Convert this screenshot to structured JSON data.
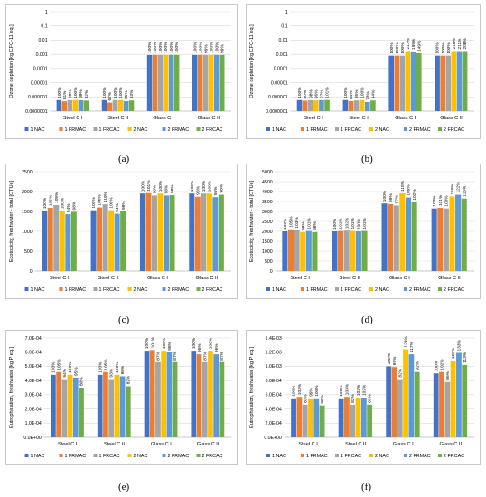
{
  "colors": {
    "series": [
      "#4472C4",
      "#ED7D31",
      "#A5A5A5",
      "#FFC000",
      "#5B9BD5",
      "#70AD47"
    ],
    "grid": "#d9d9d9",
    "axis": "#bfbfbf"
  },
  "chart_data": [
    {
      "type": "bar",
      "panel_label": "(a)",
      "ylabel": "Ozone depletion [kg CFC-11 eq.]",
      "yscale": "log",
      "ylim": [
        1e-07,
        1
      ],
      "yticks": [
        "1",
        "0.1",
        "0.01",
        "0.001",
        "0.0001",
        "0.00001",
        "0.000001",
        "0.0000001"
      ],
      "categories": [
        "Steel C I",
        "Steel C II",
        "Glass C I",
        "Glass C II"
      ],
      "series": [
        {
          "name": "1 NAC",
          "values": [
            6e-07,
            6e-07,
            0.0009,
            0.0009
          ],
          "labels": [
            "100%",
            "100%",
            "100%",
            "100%"
          ]
        },
        {
          "name": "1 FRMAC",
          "values": [
            4.9e-07,
            4e-07,
            0.0009,
            0.0009
          ],
          "labels": [
            "81%",
            "67%",
            "100%",
            "100%"
          ]
        },
        {
          "name": "1 FRCAC",
          "values": [
            5.9e-07,
            6e-07,
            0.0009,
            0.0009
          ],
          "labels": [
            "98%",
            "100%",
            "100%",
            "99%"
          ]
        },
        {
          "name": "2 NAC",
          "values": [
            6e-07,
            6e-07,
            0.0009,
            0.0009
          ],
          "labels": [
            "100%",
            "100%",
            "100%",
            "100%"
          ]
        },
        {
          "name": "2 FRMAC",
          "values": [
            5.9e-07,
            5.1e-07,
            0.0009,
            0.0009
          ],
          "labels": [
            "99%",
            "85%",
            "100%",
            "100%"
          ]
        },
        {
          "name": "2 FRCAC",
          "values": [
            5.5e-07,
            5.6e-07,
            0.0009,
            0.0009
          ],
          "labels": [
            "92%",
            "93%",
            "100%",
            "99%"
          ]
        }
      ]
    },
    {
      "type": "bar",
      "panel_label": "(b)",
      "ylabel": "Ozone depletion [kg CFC-11 eq.]",
      "yscale": "log",
      "ylim": [
        1e-07,
        1
      ],
      "yticks": [
        "1",
        "0.1",
        "0.01",
        "0.001",
        "0.0001",
        "0.00001",
        "0.000001",
        "0.0000001"
      ],
      "categories": [
        "Steel C I",
        "Steel C II",
        "Glass C I",
        "Glass C II"
      ],
      "series": [
        {
          "name": "1 NAC",
          "values": [
            6e-07,
            6e-07,
            0.0008,
            0.0008
          ],
          "labels": [
            "100%",
            "100%",
            "100%",
            "100%"
          ]
        },
        {
          "name": "1 FRMAC",
          "values": [
            5.4e-07,
            5e-07,
            0.0008,
            0.0008
          ],
          "labels": [
            "90%",
            "84%",
            "100%",
            "100%"
          ]
        },
        {
          "name": "1 FRCAC",
          "values": [
            5.9e-07,
            5.7e-07,
            0.0008,
            0.0008
          ],
          "labels": [
            "98%",
            "95%",
            "100%",
            "100%"
          ]
        },
        {
          "name": "2 NAC",
          "values": [
            5.7e-07,
            6e-07,
            0.0017,
            0.0017
          ],
          "labels": [
            "96%",
            "100%",
            "217%",
            "216%"
          ]
        },
        {
          "name": "2 FRMAC",
          "values": [
            5.8e-07,
            4.4e-07,
            0.0016,
            0.0017
          ],
          "labels": [
            "97%",
            "73%",
            "199%",
            "211%"
          ]
        },
        {
          "name": "2 FRCAC",
          "values": [
            6.1e-07,
            5.6e-07,
            0.0012,
            0.0017
          ],
          "labels": [
            "101%",
            "94%",
            "149%",
            "208%"
          ]
        }
      ]
    },
    {
      "type": "bar",
      "panel_label": "(c)",
      "ylabel": "Ecotoxicity, freshwater - total [CTUe]",
      "yscale": "linear",
      "ylim": [
        0,
        2500
      ],
      "yticks": [
        "0",
        "500",
        "1000",
        "1500",
        "2000",
        "2500"
      ],
      "categories": [
        "Steel C I",
        "Steel C II",
        "Glass C I",
        "Glass C II"
      ],
      "series": [
        {
          "name": "1 NAC",
          "values": [
            1520,
            1530,
            1950,
            1950
          ],
          "labels": [
            "100%",
            "100%",
            "100%",
            "100%"
          ]
        },
        {
          "name": "1 FRMAC",
          "values": [
            1590,
            1600,
            1960,
            1870
          ],
          "labels": [
            "105%",
            "106%",
            "101%",
            "96%"
          ]
        },
        {
          "name": "1 FRCAC",
          "values": [
            1660,
            1680,
            1900,
            1950
          ],
          "labels": [
            "109%",
            "110%",
            "98%",
            "100%"
          ]
        },
        {
          "name": "2 NAC",
          "values": [
            1520,
            1530,
            1950,
            1950
          ],
          "labels": [
            "100%",
            "100%",
            "100%",
            "100%"
          ]
        },
        {
          "name": "2 FRMAC",
          "values": [
            1430,
            1440,
            1900,
            1860
          ],
          "labels": [
            "94%",
            "94%",
            "98%",
            "95%"
          ]
        },
        {
          "name": "2 FRCAC",
          "values": [
            1490,
            1500,
            1910,
            1920
          ],
          "labels": [
            "98%",
            "98%",
            "98%",
            "98%"
          ]
        }
      ]
    },
    {
      "type": "bar",
      "panel_label": "(d)",
      "ylabel": "Ecotoxicity, freshwater - total [CTUe]",
      "yscale": "linear",
      "ylim": [
        0,
        5000
      ],
      "yticks": [
        "0",
        "500",
        "1000",
        "1500",
        "2000",
        "2500",
        "3000",
        "3500",
        "4000",
        "4500",
        "5000"
      ],
      "categories": [
        "Steel C I",
        "Steel C II",
        "Glass C I",
        "Glass C II"
      ],
      "series": [
        {
          "name": "1 NAC",
          "values": [
            2000,
            2000,
            3400,
            3150
          ],
          "labels": [
            "100%",
            "100%",
            "100%",
            "100%"
          ]
        },
        {
          "name": "1 FRMAC",
          "values": [
            2100,
            2020,
            3370,
            3180
          ],
          "labels": [
            "105%",
            "101%",
            "99%",
            "101%"
          ]
        },
        {
          "name": "1 FRCAC",
          "values": [
            2060,
            2040,
            3300,
            3150
          ],
          "labels": [
            "103%",
            "102%",
            "97%",
            "100%"
          ]
        },
        {
          "name": "2 NAC",
          "values": [
            1960,
            2020,
            3910,
            3750
          ],
          "labels": [
            "98%",
            "101%",
            "115%",
            "119%"
          ]
        },
        {
          "name": "2 FRMAC",
          "values": [
            2020,
            2000,
            3700,
            3840
          ],
          "labels": [
            "101%",
            "100%",
            "109%",
            "122%"
          ]
        },
        {
          "name": "2 FRCAC",
          "values": [
            1960,
            2020,
            3470,
            3650
          ],
          "labels": [
            "98%",
            "101%",
            "102%",
            "116%"
          ]
        }
      ]
    },
    {
      "type": "bar",
      "panel_label": "(e)",
      "ylabel": "Eutrophication, freshwater [kg P eq.]",
      "yscale": "linear",
      "ylim": [
        0,
        0.0007
      ],
      "yticks": [
        "0.0E+00",
        "1.0E-04",
        "2.0E-04",
        "3.0E-04",
        "4.0E-04",
        "5.0E-04",
        "6.0E-04",
        "7.0E-04"
      ],
      "categories": [
        "Steel C I",
        "Steel C II",
        "Glass C I",
        "Glass C II"
      ],
      "series": [
        {
          "name": "1 NAC",
          "values": [
            0.00044,
            0.00044,
            0.00061,
            0.00061
          ],
          "labels": [
            "100%",
            "100%",
            "100%",
            "100%"
          ]
        },
        {
          "name": "1 FRMAC",
          "values": [
            0.00046,
            0.00046,
            0.000615,
            0.000585
          ],
          "labels": [
            "105%",
            "105%",
            "101%",
            "96%"
          ]
        },
        {
          "name": "1 FRCAC",
          "values": [
            0.00041,
            0.00041,
            0.00053,
            0.00053
          ],
          "labels": [
            "94%",
            "93%",
            "87%",
            "87%"
          ]
        },
        {
          "name": "2 NAC",
          "values": [
            0.00044,
            0.00044,
            0.00061,
            0.00061
          ],
          "labels": [
            "100%",
            "100%",
            "100%",
            "100%"
          ]
        },
        {
          "name": "2 FRMAC",
          "values": [
            0.00042,
            0.00043,
            0.0006,
            0.000585
          ],
          "labels": [
            "95%",
            "98%",
            "98%",
            "96%"
          ]
        },
        {
          "name": "2 FRCAC",
          "values": [
            0.00035,
            0.00036,
            0.00053,
            0.00053
          ],
          "labels": [
            "80%",
            "82%",
            "87%",
            "87%"
          ]
        }
      ]
    },
    {
      "type": "bar",
      "panel_label": "(f)",
      "ylabel": "Eutrophication, freshwater [kg P eq.]",
      "yscale": "linear",
      "ylim": [
        0,
        0.0014
      ],
      "yticks": [
        "0.0E+00",
        "2.0E-04",
        "4.0E-04",
        "6.0E-04",
        "8.0E-04",
        "1.0E-03",
        "1.2E-03",
        "1.4E-03"
      ],
      "categories": [
        "Steel C I",
        "Steel C II",
        "Glass C I",
        "Glass C II"
      ],
      "series": [
        {
          "name": "1 NAC",
          "values": [
            0.00055,
            0.00055,
            0.001,
            0.0009
          ],
          "labels": [
            "100%",
            "100%",
            "100%",
            "100%"
          ]
        },
        {
          "name": "1 FRMAC",
          "values": [
            0.00057,
            0.00057,
            0.00099,
            0.00092
          ],
          "labels": [
            "103%",
            "103%",
            "99%",
            "102%"
          ]
        },
        {
          "name": "1 FRCAC",
          "values": [
            0.00046,
            0.00046,
            0.00082,
            0.00078
          ],
          "labels": [
            "83%",
            "83%",
            "82%",
            "86%"
          ]
        },
        {
          "name": "2 NAC",
          "values": [
            0.00055,
            0.00056,
            0.00124,
            0.00108
          ],
          "labels": [
            "99%",
            "102%",
            "124%",
            "120%"
          ]
        },
        {
          "name": "2 FRMAC",
          "values": [
            0.00055,
            0.00056,
            0.00117,
            0.00119
          ],
          "labels": [
            "100%",
            "102%",
            "117%",
            "133%"
          ]
        },
        {
          "name": "2 FRCAC",
          "values": [
            0.00045,
            0.00046,
            0.00092,
            0.00102
          ],
          "labels": [
            "82%",
            "83%",
            "92%",
            "113%"
          ]
        }
      ]
    }
  ]
}
